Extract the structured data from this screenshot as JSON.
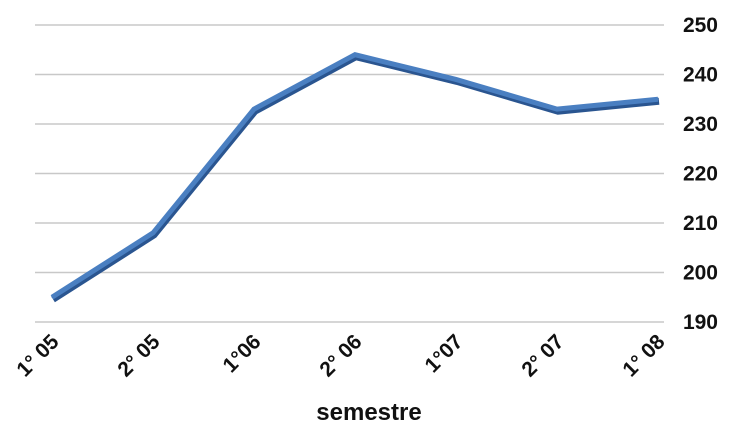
{
  "chart_data": {
    "type": "line",
    "categories": [
      "1° 05",
      "2° 05",
      "1°06",
      "2° 06",
      "1°07",
      "2° 07",
      "1° 08"
    ],
    "series": [
      {
        "values": [
          195,
          208,
          233,
          244,
          239,
          233,
          235
        ]
      }
    ],
    "title": "",
    "xlabel": "semestre",
    "ylabel": "",
    "ylim": [
      190,
      250
    ],
    "yticks": [
      250,
      240,
      230,
      220,
      210,
      200,
      190
    ],
    "y_axis_side": "right",
    "grid": true,
    "legend": "none",
    "colors": {
      "line": "#4a7fc1",
      "line_dark": "#2a5590",
      "grid": "#c8c8c8",
      "text": "#111111"
    }
  }
}
